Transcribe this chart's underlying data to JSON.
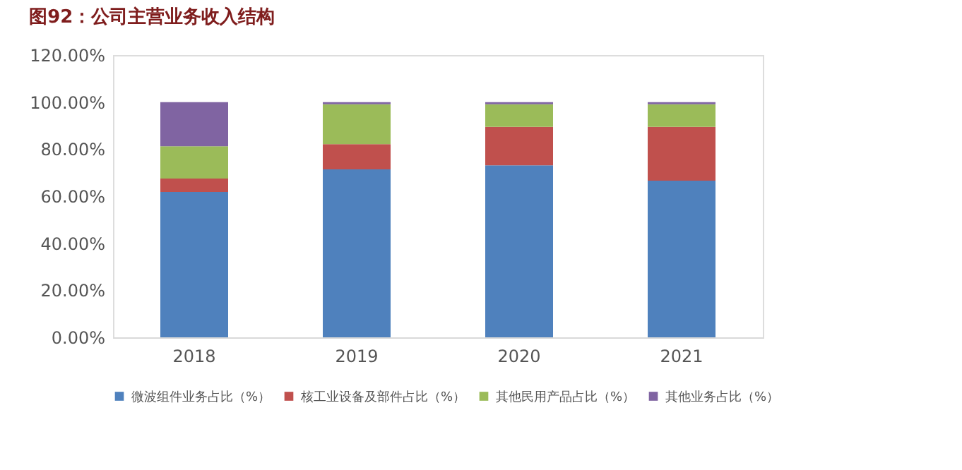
{
  "chart_data": {
    "type": "bar",
    "stacked": true,
    "title": "图92：公司主营业务收入结构",
    "categories": [
      "2018",
      "2019",
      "2020",
      "2021"
    ],
    "series": [
      {
        "name": "微波组件业务占比（%）",
        "color": "#4f81bd",
        "values": [
          61.8,
          71.4,
          73.1,
          66.6
        ]
      },
      {
        "name": "核工业设备及部件占比（%）",
        "color": "#c0504d",
        "values": [
          5.7,
          10.7,
          16.4,
          22.9
        ]
      },
      {
        "name": "其他民用产品占比（%）",
        "color": "#9bbb59",
        "values": [
          13.7,
          17.0,
          9.6,
          9.6
        ]
      },
      {
        "name": "其他业务占比（%）",
        "color": "#8064a2",
        "values": [
          18.8,
          0.9,
          0.9,
          0.9
        ]
      }
    ],
    "ylim": [
      0,
      120
    ],
    "yticks": [
      {
        "value": 0,
        "label": "0.00%"
      },
      {
        "value": 20,
        "label": "20.00%"
      },
      {
        "value": 40,
        "label": "40.00%"
      },
      {
        "value": 60,
        "label": "60.00%"
      },
      {
        "value": 80,
        "label": "80.00%"
      },
      {
        "value": 100,
        "label": "100.00%"
      },
      {
        "value": 120,
        "label": "120.00%"
      }
    ],
    "grid": false,
    "legend": "bottom"
  }
}
